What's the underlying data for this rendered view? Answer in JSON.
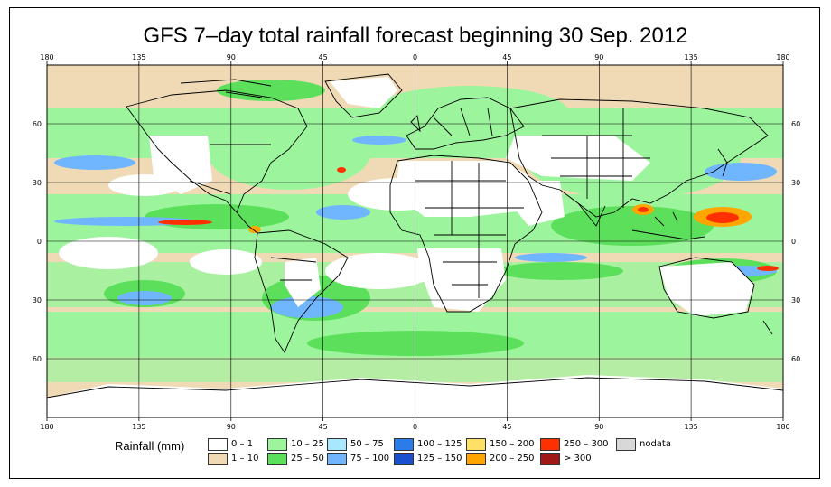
{
  "title": "GFS 7–day total rainfall forecast beginning 30 Sep. 2012",
  "lon_ticks": [
    "180",
    "135",
    "90",
    "45",
    "0",
    "45",
    "90",
    "135",
    "180"
  ],
  "lat_ticks": [
    "60",
    "30",
    "0",
    "30",
    "60"
  ],
  "legend": {
    "title": "Rainfall (mm)",
    "items": [
      {
        "label": "0 – 1",
        "color": "#ffffff"
      },
      {
        "label": "1 – 10",
        "color": "#f0d9b5"
      },
      {
        "label": "10 – 25",
        "color": "#9cf59c"
      },
      {
        "label": "25 – 50",
        "color": "#5ce05c"
      },
      {
        "label": "50 – 75",
        "color": "#a8e8ff"
      },
      {
        "label": "75 – 100",
        "color": "#6fb6ff"
      },
      {
        "label": "100 – 125",
        "color": "#2a7de8"
      },
      {
        "label": "125 – 150",
        "color": "#1a4fd0"
      },
      {
        "label": "150 – 200",
        "color": "#ffe066"
      },
      {
        "label": "200 – 250",
        "color": "#ffa500"
      },
      {
        "label": "250 – 300",
        "color": "#ff3000"
      },
      {
        "label": "> 300",
        "color": "#a01818"
      },
      {
        "label": "nodata",
        "color": "#d8d8d8"
      }
    ]
  }
}
